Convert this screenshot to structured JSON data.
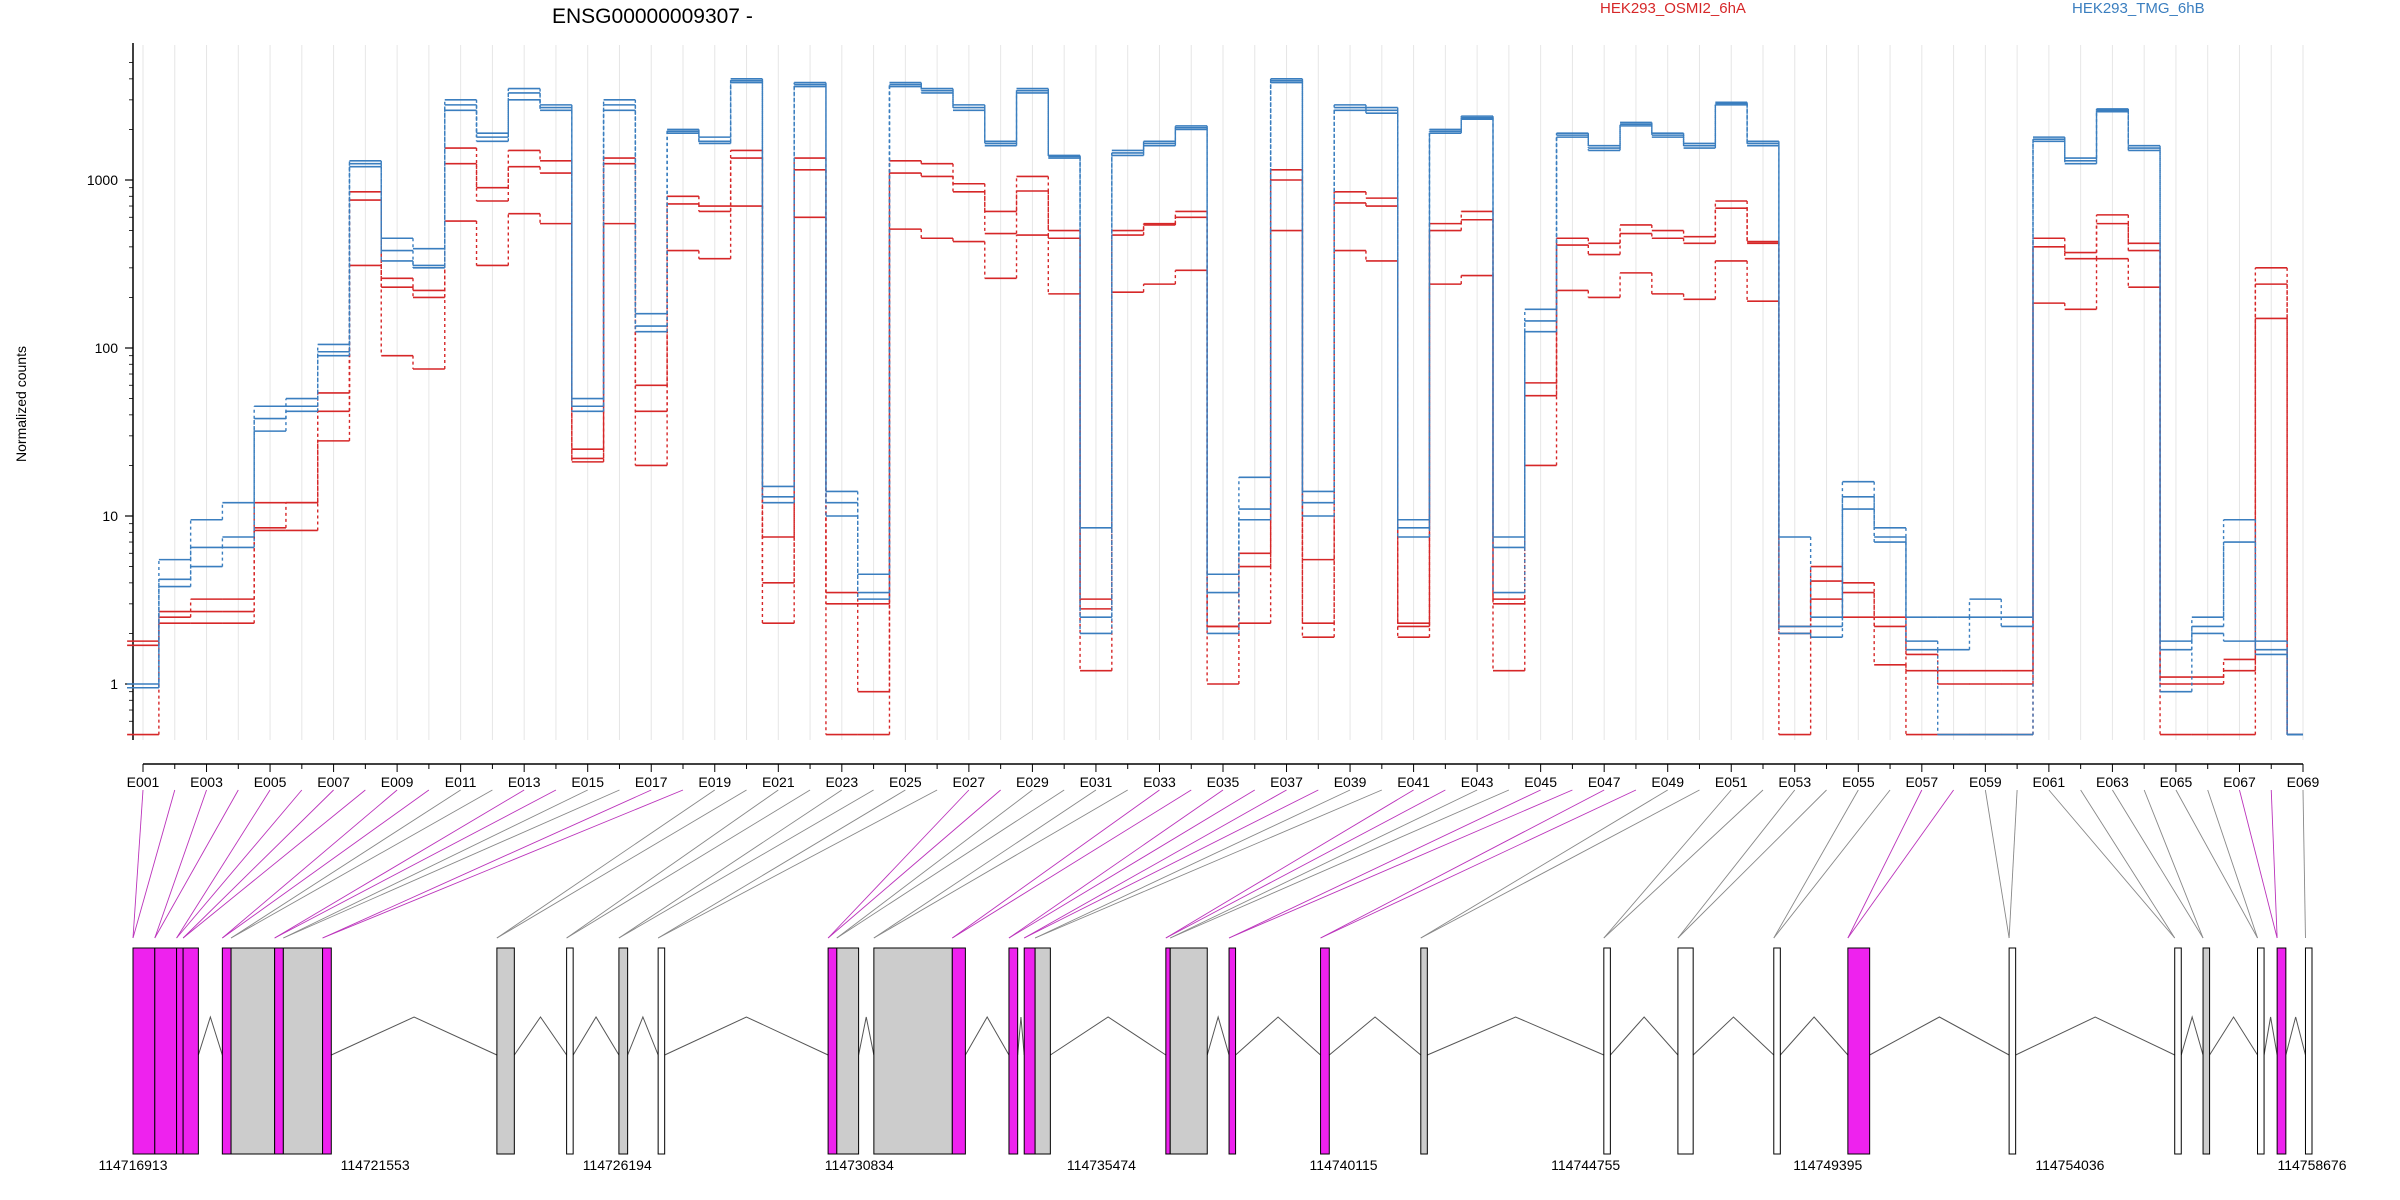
{
  "chart_data": {
    "type": "line",
    "title": "ENSG00000009307 -",
    "ylabel": "Normalized counts",
    "xlabel": "",
    "yscale": "log",
    "ylim": [
      0.5,
      5000
    ],
    "y_ticks": [
      1,
      10,
      100,
      1000
    ],
    "y_tick_labels": [
      "1",
      "10",
      "100",
      "1000"
    ],
    "grid": "vertical",
    "legend_placement": "top",
    "legend": [
      {
        "label": "HEK293_OSMI2_6hA",
        "color": "#d62728"
      },
      {
        "label": "HEK293_TMG_6hB",
        "color": "#3a7ebf"
      }
    ],
    "exons": [
      "E001",
      "E002",
      "E003",
      "E004",
      "E005",
      "E006",
      "E007",
      "E008",
      "E009",
      "E010",
      "E011",
      "E012",
      "E013",
      "E014",
      "E015",
      "E016",
      "E017",
      "E018",
      "E019",
      "E020",
      "E021",
      "E022",
      "E023",
      "E024",
      "E025",
      "E026",
      "E027",
      "E028",
      "E029",
      "E030",
      "E031",
      "E032",
      "E033",
      "E034",
      "E035",
      "E036",
      "E037",
      "E038",
      "E039",
      "E040",
      "E041",
      "E042",
      "E043",
      "E044",
      "E045",
      "E046",
      "E047",
      "E048",
      "E049",
      "E050",
      "E051",
      "E052",
      "E053",
      "E054",
      "E055",
      "E056",
      "E057",
      "E058",
      "E059",
      "E060",
      "E061",
      "E062",
      "E063",
      "E064",
      "E065",
      "E066",
      "E067",
      "E068",
      "E069"
    ],
    "x_tick_labels": [
      "E001",
      "E003",
      "E005",
      "E007",
      "E009",
      "E011",
      "E013",
      "E015",
      "E017",
      "E019",
      "E021",
      "E023",
      "E025",
      "E027",
      "E029",
      "E031",
      "E033",
      "E035",
      "E037",
      "E039",
      "E041",
      "E043",
      "E045",
      "E047",
      "E049",
      "E051",
      "E053",
      "E055",
      "E057",
      "E059",
      "E061",
      "E063",
      "E065",
      "E067",
      "E069"
    ],
    "series": [
      {
        "group": "HEK293_TMG_6hB",
        "color": "#3a7ebf",
        "values": [
          1.0,
          5.5,
          9.5,
          12,
          45,
          50,
          105,
          1300,
          450,
          390,
          3000,
          1900,
          3500,
          2800,
          50,
          3000,
          160,
          2000,
          1800,
          4000,
          15,
          3800,
          14,
          4.5,
          3800,
          3500,
          2800,
          1700,
          3500,
          1400,
          8.5,
          1500,
          1700,
          2100,
          4.5,
          17,
          4000,
          14,
          2800,
          2700,
          9.5,
          2000,
          2400,
          7.5,
          170,
          1900,
          1600,
          2200,
          1900,
          1650,
          2900,
          1700,
          7.5,
          2.5,
          16,
          8.5,
          2.5,
          2.5,
          3.2,
          2.5,
          1800,
          1350,
          2650,
          1600,
          1.8,
          2.5,
          9.5,
          1.8,
          0.5
        ]
      },
      {
        "group": "HEK293_TMG_6hB",
        "color": "#3a7ebf",
        "values": [
          0.95,
          4.2,
          6.5,
          7.5,
          38,
          45,
          95,
          1250,
          380,
          310,
          2800,
          1800,
          3300,
          2700,
          45,
          2800,
          135,
          1950,
          1700,
          3900,
          13,
          3700,
          12,
          3.5,
          3700,
          3400,
          2700,
          1650,
          3400,
          1380,
          2.5,
          1450,
          1650,
          2050,
          3.5,
          11,
          3900,
          12,
          2700,
          2600,
          8.5,
          1950,
          2350,
          6.5,
          145,
          1850,
          1550,
          2150,
          1850,
          1600,
          2850,
          1650,
          2.2,
          2.2,
          13,
          7.5,
          1.8,
          1.6,
          2.5,
          2.2,
          1750,
          1300,
          2600,
          1550,
          1.6,
          2.2,
          7.0,
          1.6,
          0.5
        ]
      },
      {
        "group": "HEK293_TMG_6hB",
        "color": "#3a7ebf",
        "values": [
          0.95,
          3.8,
          5.0,
          6.5,
          32,
          42,
          90,
          1200,
          330,
          300,
          2600,
          1700,
          3000,
          2600,
          42,
          2600,
          125,
          1900,
          1650,
          3800,
          12,
          3600,
          10,
          3.2,
          3600,
          3300,
          2600,
          1600,
          3300,
          1350,
          2.0,
          1400,
          1600,
          2000,
          2.0,
          9.5,
          3800,
          10,
          2600,
          2500,
          7.5,
          1900,
          2300,
          3.5,
          125,
          1800,
          1500,
          2100,
          1800,
          1550,
          2800,
          1600,
          2.0,
          1.9,
          11,
          7.0,
          1.6,
          0.5,
          0.5,
          0.5,
          1700,
          1250,
          2550,
          1500,
          0.9,
          2.0,
          1.8,
          1.5,
          0.5
        ]
      }
    ],
    "series_red": [
      {
        "group": "HEK293_OSMI2_6hA",
        "color": "#d62728",
        "values": [
          1.8,
          2.7,
          3.2,
          3.2,
          12,
          12,
          54,
          850,
          260,
          220,
          1550,
          900,
          1500,
          1300,
          25,
          1350,
          60,
          800,
          700,
          1500,
          7.5,
          1350,
          3.5,
          3.0,
          1300,
          1250,
          950,
          650,
          1050,
          500,
          3.2,
          500,
          550,
          650,
          2.2,
          6,
          1150,
          5.5,
          850,
          780,
          2.3,
          550,
          650,
          3.2,
          62,
          450,
          420,
          540,
          500,
          460,
          750,
          430,
          2.2,
          5,
          4,
          2.5,
          1.5,
          1.2,
          1.2,
          1.2,
          450,
          370,
          620,
          420,
          1.1,
          1.1,
          1.4,
          300,
          0.5
        ]
      },
      {
        "group": "HEK293_OSMI2_6hA",
        "color": "#d62728",
        "values": [
          1.7,
          2.5,
          2.7,
          2.7,
          8.5,
          12,
          42,
          760,
          230,
          200,
          1250,
          750,
          1200,
          1100,
          22,
          1250,
          42,
          720,
          650,
          1350,
          4.0,
          1150,
          3.0,
          0.9,
          1100,
          1050,
          850,
          480,
          860,
          450,
          2.8,
          470,
          540,
          600,
          2.2,
          5,
          1000,
          2.3,
          730,
          700,
          2.2,
          500,
          580,
          3.0,
          52,
          410,
          360,
          480,
          450,
          420,
          680,
          420,
          2.0,
          4.1,
          3.5,
          2.2,
          1.2,
          1.0,
          1.0,
          1.0,
          400,
          340,
          550,
          380,
          1.0,
          1.0,
          1.2,
          240,
          0.5
        ]
      },
      {
        "group": "HEK293_OSMI2_6hA",
        "color": "#d62728",
        "values": [
          0.5,
          2.3,
          2.3,
          2.3,
          8.2,
          8.2,
          28,
          310,
          90,
          75,
          570,
          310,
          630,
          550,
          21,
          550,
          20,
          380,
          340,
          700,
          2.3,
          600,
          0.5,
          0.5,
          510,
          450,
          430,
          260,
          470,
          210,
          1.2,
          215,
          240,
          290,
          1.0,
          2.3,
          500,
          1.9,
          380,
          330,
          1.9,
          240,
          270,
          1.2,
          20,
          220,
          200,
          280,
          210,
          195,
          330,
          190,
          0.5,
          3.2,
          2.5,
          1.3,
          0.5,
          0.5,
          0.5,
          0.5,
          185,
          170,
          340,
          230,
          0.5,
          0.5,
          0.5,
          150,
          0.5
        ]
      }
    ],
    "coordinate_axis": {
      "labels": [
        "114716913",
        "114721553",
        "114726194",
        "114730834",
        "114735474",
        "114740115",
        "114744755",
        "114749395",
        "114754036",
        "114758676"
      ]
    }
  },
  "colors": {
    "red": "#d62728",
    "blue": "#3a7ebf",
    "magenta": "#ee22ee",
    "grey_exon": "#cccccc",
    "connector_grey": "#888888",
    "connector_magenta": "#bb33bb"
  }
}
